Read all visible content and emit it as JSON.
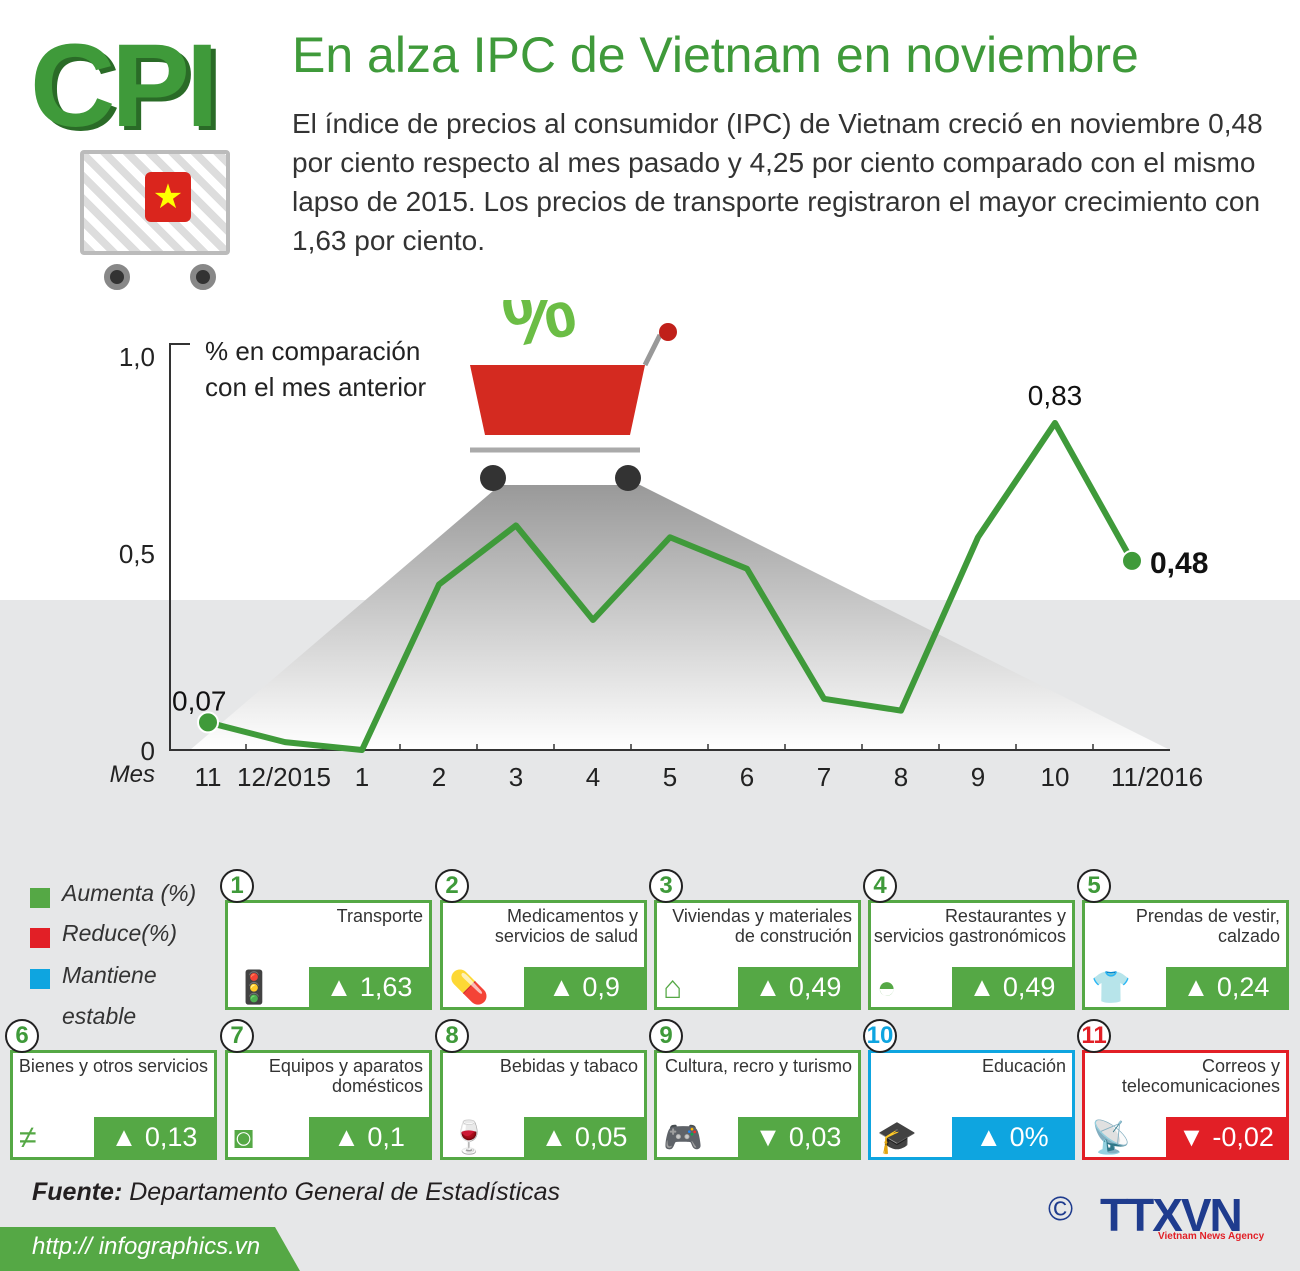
{
  "header": {
    "logo": "CPI",
    "title": "En alza IPC de Vietnam en noviembre",
    "description": "El índice de precios al consumidor (IPC) de Vietnam creció en noviembre 0,48 por ciento respecto al mes pasado y 4,25 por ciento comparado con el mismo lapso de 2015. Los precios de transporte registraron el mayor crecimiento con 1,63 por ciento.",
    "flag_icon": "★"
  },
  "chart_data": {
    "type": "line",
    "title": "",
    "ylabel": "% en comparación con el mes anterior",
    "ylabel_lines": [
      "% en comparación",
      "con el mes anterior"
    ],
    "xlabel": "Mes",
    "categories": [
      "11",
      "12/2015",
      "1",
      "2",
      "3",
      "4",
      "5",
      "6",
      "7",
      "8",
      "9",
      "10",
      "11/2016"
    ],
    "values": [
      0.07,
      0.02,
      0.0,
      0.42,
      0.57,
      0.33,
      0.54,
      0.46,
      0.13,
      0.1,
      0.54,
      0.83,
      0.48
    ],
    "yticks": [
      "0",
      "0,5",
      "1,0"
    ],
    "ylim": [
      0,
      1.0
    ],
    "data_labels": [
      {
        "index": 0,
        "text": "0,07"
      },
      {
        "index": 11,
        "text": "0,83"
      },
      {
        "index": 12,
        "text": "0,48"
      }
    ],
    "line_color": "#3f9a3a",
    "grid": false
  },
  "legend": [
    {
      "label": "Aumenta (%)",
      "color": "#55a845"
    },
    {
      "label": "Reduce(%)",
      "color": "#e21f26"
    },
    {
      "label": "Mantiene",
      "label2": "estable",
      "color": "#0ea5e0"
    }
  ],
  "cards": [
    {
      "num": "1",
      "label": "Transporte",
      "value": "▲ 1,63",
      "icon": "traffic-light",
      "glyph": "🚦",
      "status": "up"
    },
    {
      "num": "2",
      "label": "Medicamentos y servicios de salud",
      "value": "▲ 0,9",
      "icon": "pill",
      "glyph": "💊",
      "status": "up"
    },
    {
      "num": "3",
      "label": "Viviendas y materiales de construción",
      "value": "▲ 0,49",
      "icon": "house",
      "glyph": "⌂",
      "status": "up"
    },
    {
      "num": "4",
      "label": "Restaurantes y servicios gastronómicos",
      "value": "▲ 0,49",
      "icon": "cloche",
      "glyph": "◓",
      "status": "up"
    },
    {
      "num": "5",
      "label": "Prendas de vestir, calzado",
      "value": "▲ 0,24",
      "icon": "clothing",
      "glyph": "👕",
      "status": "up"
    },
    {
      "num": "6",
      "label": "Bienes y otros servicios",
      "value": "▲ 0,13",
      "icon": "not-equal",
      "glyph": "≠",
      "status": "up"
    },
    {
      "num": "7",
      "label": "Equipos y aparatos domésticos",
      "value": "▲ 0,1",
      "icon": "washing-machine",
      "glyph": "◙",
      "status": "up"
    },
    {
      "num": "8",
      "label": "Bebidas y tabaco",
      "value": "▲ 0,05",
      "icon": "bottle-cigarette",
      "glyph": "🍷",
      "status": "up"
    },
    {
      "num": "9",
      "label": "Cultura, recro y turismo",
      "value": "▼ 0,03",
      "icon": "gamepad",
      "glyph": "🎮",
      "status": "up"
    },
    {
      "num": "10",
      "label": "Educación",
      "value": "▲ 0%",
      "icon": "graduation-cap",
      "glyph": "🎓",
      "status": "stable"
    },
    {
      "num": "11",
      "label": "Correos y telecomunicaciones",
      "value": "▼ -0,02",
      "icon": "antenna",
      "glyph": "📡",
      "status": "down"
    }
  ],
  "footer": {
    "source_label": "Fuente:",
    "source": "Departamento General de Estadísticas",
    "url": "http:// infographics.vn",
    "copyright": "©",
    "agency": "TTXVN",
    "agency_sub": "Vietnam News Agency"
  }
}
